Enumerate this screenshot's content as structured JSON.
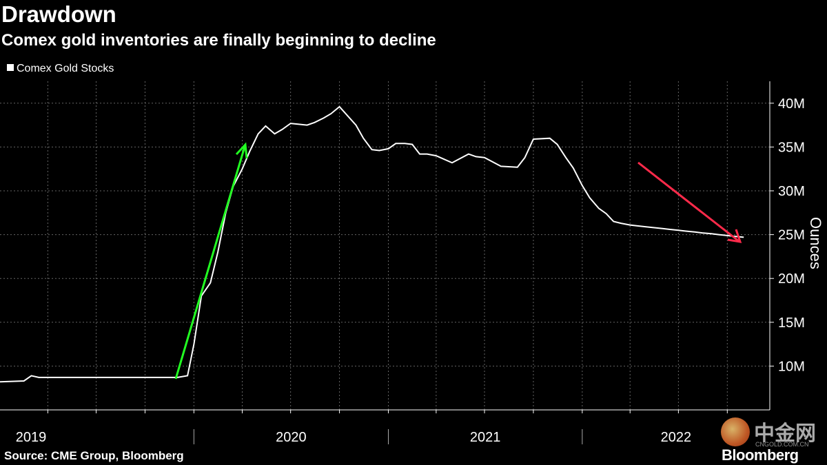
{
  "title": "Drawdown",
  "subtitle": "Comex gold inventories are finally beginning to decline",
  "legend_label": "Comex Gold Stocks",
  "source": "Source: CME Group, Bloomberg",
  "brand": "Bloomberg",
  "watermark": {
    "text": "中金网",
    "sub": "CNGOLD.COM.CN"
  },
  "colors": {
    "background": "#000000",
    "line": "#ffffff",
    "grid": "#666666",
    "up_arrow": "#22ff22",
    "down_arrow": "#ff2a4a"
  },
  "chart_data": {
    "type": "line",
    "ylabel": "Ounces",
    "ylim": [
      5000000,
      42500000
    ],
    "y_ticks": [
      10000000,
      15000000,
      20000000,
      25000000,
      30000000,
      35000000,
      40000000
    ],
    "y_tick_labels": [
      "10M",
      "15M",
      "20M",
      "25M",
      "30M",
      "35M",
      "40M"
    ],
    "x_range": [
      "2019-01-01",
      "2022-12-31"
    ],
    "x_tick_labels": [
      "2019",
      "2020",
      "2021",
      "2022"
    ],
    "grid": true,
    "legend_position": "top-left",
    "series": [
      {
        "name": "Comex Gold Stocks",
        "x": [
          "2019-01-01",
          "2019-02-15",
          "2019-03-01",
          "2019-03-15",
          "2019-06-01",
          "2019-09-01",
          "2019-12-01",
          "2019-12-20",
          "2020-01-01",
          "2020-01-15",
          "2020-02-01",
          "2020-02-15",
          "2020-03-01",
          "2020-03-15",
          "2020-04-01",
          "2020-04-15",
          "2020-05-01",
          "2020-05-15",
          "2020-06-01",
          "2020-06-15",
          "2020-07-01",
          "2020-07-15",
          "2020-08-01",
          "2020-08-15",
          "2020-09-01",
          "2020-09-15",
          "2020-10-01",
          "2020-11-01",
          "2020-11-15",
          "2020-12-01",
          "2020-12-15",
          "2021-01-01",
          "2021-01-15",
          "2021-02-01",
          "2021-02-15",
          "2021-03-01",
          "2021-03-15",
          "2021-04-01",
          "2021-05-01",
          "2021-06-01",
          "2021-06-15",
          "2021-07-01",
          "2021-08-01",
          "2021-09-01",
          "2021-09-15",
          "2021-10-01",
          "2021-11-01",
          "2021-11-15",
          "2021-12-01",
          "2021-12-15",
          "2022-01-01",
          "2022-01-15",
          "2022-02-01",
          "2022-02-15",
          "2022-03-01",
          "2022-03-15",
          "2022-04-01",
          "2022-04-15",
          "2022-05-01",
          "2022-05-15",
          "2022-06-01",
          "2022-06-15",
          "2022-07-01",
          "2022-07-15",
          "2022-08-01",
          "2022-08-15",
          "2022-09-01",
          "2022-09-15",
          "2022-10-01",
          "2022-10-15",
          "2022-11-01"
        ],
        "values": [
          8200000,
          8300000,
          8900000,
          8700000,
          8700000,
          8700000,
          8700000,
          8900000,
          12500000,
          18000000,
          19500000,
          23000000,
          27500000,
          30500000,
          32500000,
          34500000,
          36500000,
          37400000,
          36500000,
          37000000,
          37700000,
          37600000,
          37500000,
          37800000,
          38300000,
          38800000,
          39600000,
          37500000,
          36000000,
          34700000,
          34600000,
          34800000,
          35400000,
          35400000,
          35300000,
          34200000,
          34200000,
          34000000,
          33200000,
          34200000,
          33900000,
          33800000,
          32800000,
          32700000,
          33800000,
          35900000,
          36000000,
          35300000,
          33800000,
          32600000,
          30600000,
          29200000,
          28000000,
          27400000,
          26500000,
          26300000,
          26100000,
          26000000,
          25900000,
          25800000,
          25700000,
          25600000,
          25500000,
          25400000,
          25300000,
          25200000,
          25100000,
          25000000,
          24900000,
          24800000,
          24700000
        ]
      }
    ]
  }
}
